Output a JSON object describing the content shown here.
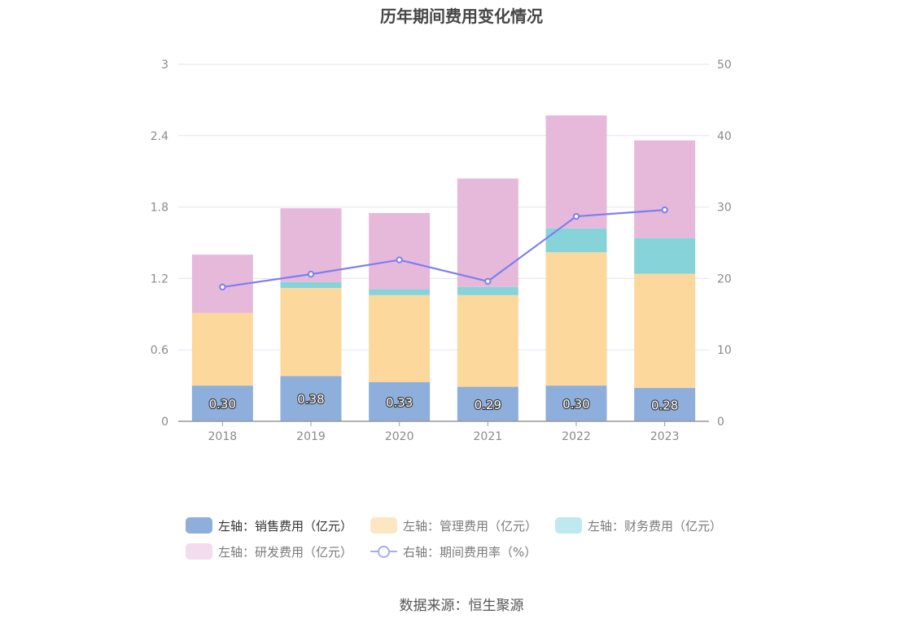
{
  "chart_data": {
    "type": "bar",
    "title": "历年期间费用变化情况",
    "categories": [
      "2018",
      "2019",
      "2020",
      "2021",
      "2022",
      "2023"
    ],
    "stacked": true,
    "y_left": {
      "ticks": [
        "0",
        "0.6",
        "1.2",
        "1.8",
        "2.4",
        "3"
      ],
      "ylim": [
        0,
        3
      ]
    },
    "y_right": {
      "ticks": [
        "0",
        "10",
        "20",
        "30",
        "40",
        "50"
      ],
      "ylim": [
        0,
        50
      ]
    },
    "series": [
      {
        "name": "左轴：销售费用（亿元）",
        "axis": "left",
        "color": "#8eaedb",
        "values": [
          0.3,
          0.38,
          0.33,
          0.29,
          0.3,
          0.28
        ],
        "labels": [
          "0.30",
          "0.38",
          "0.33",
          "0.29",
          "0.30",
          "0.28"
        ]
      },
      {
        "name": "左轴：管理费用（亿元）",
        "axis": "left",
        "color": "#fdd89d",
        "legend_color": "#fde6c2",
        "values": [
          0.61,
          0.74,
          0.73,
          0.77,
          1.12,
          0.96
        ]
      },
      {
        "name": "左轴：财务费用（亿元）",
        "axis": "left",
        "color": "#86d4da",
        "legend_color": "#bfe9ec",
        "values": [
          0.0,
          0.05,
          0.05,
          0.07,
          0.2,
          0.3
        ]
      },
      {
        "name": "左轴：研发费用（亿元）",
        "axis": "left",
        "color": "#e6b9db",
        "legend_color": "#f3dcee",
        "values": [
          0.49,
          0.62,
          0.64,
          0.91,
          0.95,
          0.82
        ]
      },
      {
        "name": "右轴：期间费用率（%）",
        "axis": "right",
        "type": "line",
        "color": "#7b7ff0",
        "values": [
          18.8,
          20.6,
          22.6,
          19.6,
          28.7,
          29.6
        ]
      }
    ]
  },
  "source": "数据来源：恒生聚源"
}
